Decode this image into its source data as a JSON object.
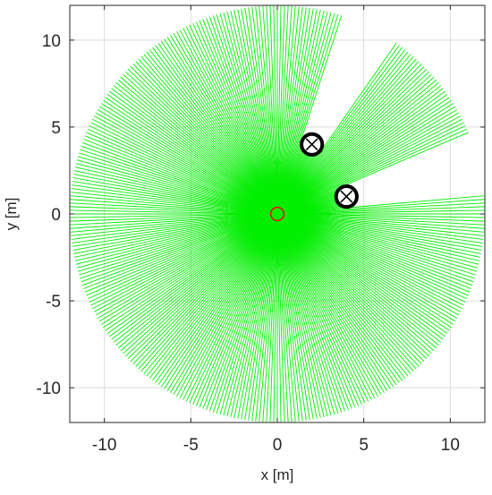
{
  "chart_data": {
    "type": "scatter",
    "title": "",
    "xlabel": "x [m]",
    "ylabel": "y [m]",
    "xlim": [
      -12,
      12
    ],
    "ylim": [
      -12,
      12
    ],
    "xticks": [
      -10,
      -5,
      0,
      5,
      10
    ],
    "yticks": [
      -10,
      -5,
      0,
      5,
      10
    ],
    "xtick_labels": [
      "-10",
      "-5",
      "0",
      "5",
      "10"
    ],
    "ytick_labels": [
      "-10",
      "-5",
      "0",
      "5",
      "10"
    ],
    "grid": true,
    "legend": "none",
    "rays": {
      "color": "#00ee00",
      "origin": [
        0,
        0
      ],
      "max_range": 12,
      "angle_step_deg": 1,
      "start_deg": 0,
      "end_deg": 359
    },
    "sensor": {
      "x": 0,
      "y": 0,
      "radius": 0.45,
      "color": "#ff0000",
      "marker": "circle"
    },
    "obstacles": [
      {
        "x": 2,
        "y": 4,
        "radius": 0.6,
        "marker": "x-in-circle"
      },
      {
        "x": 4,
        "y": 1,
        "radius": 0.6,
        "marker": "x-in-circle"
      }
    ],
    "colors": {
      "rays": "#00ee00",
      "sensor": "#ff0000",
      "obstacle": "#000000",
      "grid": "#dcdcdc",
      "axes": "#262626"
    }
  }
}
